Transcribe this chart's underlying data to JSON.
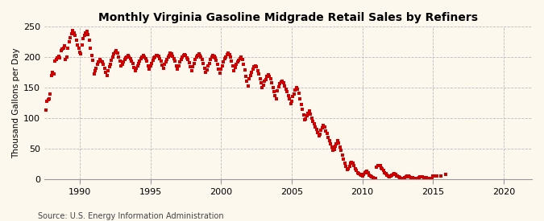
{
  "title": "Monthly Virginia Gasoline Midgrade Retail Sales by Refiners",
  "ylabel": "Thousand Gallons per Day",
  "source": "Source: U.S. Energy Information Administration",
  "background_color": "#fdf8ee",
  "dot_color": "#cc0000",
  "xlim": [
    1987.5,
    2022
  ],
  "ylim": [
    0,
    250
  ],
  "yticks": [
    0,
    50,
    100,
    150,
    200,
    250
  ],
  "xticks": [
    1990,
    1995,
    2000,
    2005,
    2010,
    2015,
    2020
  ],
  "data": {
    "dates": [
      1987.583,
      1987.667,
      1987.75,
      1987.833,
      1987.917,
      1988.0,
      1988.083,
      1988.167,
      1988.25,
      1988.333,
      1988.417,
      1988.5,
      1988.583,
      1988.667,
      1988.75,
      1988.833,
      1988.917,
      1989.0,
      1989.083,
      1989.167,
      1989.25,
      1989.333,
      1989.417,
      1989.5,
      1989.583,
      1989.667,
      1989.75,
      1989.833,
      1989.917,
      1990.0,
      1990.083,
      1990.167,
      1990.25,
      1990.333,
      1990.417,
      1990.5,
      1990.583,
      1990.667,
      1990.75,
      1990.833,
      1990.917,
      1991.0,
      1991.083,
      1991.167,
      1991.25,
      1991.333,
      1991.417,
      1991.5,
      1991.583,
      1991.667,
      1991.75,
      1991.833,
      1991.917,
      1992.0,
      1992.083,
      1992.167,
      1992.25,
      1992.333,
      1992.417,
      1992.5,
      1992.583,
      1992.667,
      1992.75,
      1992.833,
      1992.917,
      1993.0,
      1993.083,
      1993.167,
      1993.25,
      1993.333,
      1993.417,
      1993.5,
      1993.583,
      1993.667,
      1993.75,
      1993.833,
      1993.917,
      1994.0,
      1994.083,
      1994.167,
      1994.25,
      1994.333,
      1994.417,
      1994.5,
      1994.583,
      1994.667,
      1994.75,
      1994.833,
      1994.917,
      1995.0,
      1995.083,
      1995.167,
      1995.25,
      1995.333,
      1995.417,
      1995.5,
      1995.583,
      1995.667,
      1995.75,
      1995.833,
      1995.917,
      1996.0,
      1996.083,
      1996.167,
      1996.25,
      1996.333,
      1996.417,
      1996.5,
      1996.583,
      1996.667,
      1996.75,
      1996.833,
      1996.917,
      1997.0,
      1997.083,
      1997.167,
      1997.25,
      1997.333,
      1997.417,
      1997.5,
      1997.583,
      1997.667,
      1997.75,
      1997.833,
      1997.917,
      1998.0,
      1998.083,
      1998.167,
      1998.25,
      1998.333,
      1998.417,
      1998.5,
      1998.583,
      1998.667,
      1998.75,
      1998.833,
      1998.917,
      1999.0,
      1999.083,
      1999.167,
      1999.25,
      1999.333,
      1999.417,
      1999.5,
      1999.583,
      1999.667,
      1999.75,
      1999.833,
      1999.917,
      2000.0,
      2000.083,
      2000.167,
      2000.25,
      2000.333,
      2000.417,
      2000.5,
      2000.583,
      2000.667,
      2000.75,
      2000.833,
      2000.917,
      2001.0,
      2001.083,
      2001.167,
      2001.25,
      2001.333,
      2001.417,
      2001.5,
      2001.583,
      2001.667,
      2001.75,
      2001.833,
      2001.917,
      2002.0,
      2002.083,
      2002.167,
      2002.25,
      2002.333,
      2002.417,
      2002.5,
      2002.583,
      2002.667,
      2002.75,
      2002.833,
      2002.917,
      2003.0,
      2003.083,
      2003.167,
      2003.25,
      2003.333,
      2003.417,
      2003.5,
      2003.583,
      2003.667,
      2003.75,
      2003.833,
      2003.917,
      2004.0,
      2004.083,
      2004.167,
      2004.25,
      2004.333,
      2004.417,
      2004.5,
      2004.583,
      2004.667,
      2004.75,
      2004.833,
      2004.917,
      2005.0,
      2005.083,
      2005.167,
      2005.25,
      2005.333,
      2005.417,
      2005.5,
      2005.583,
      2005.667,
      2005.75,
      2005.833,
      2005.917,
      2006.0,
      2006.083,
      2006.167,
      2006.25,
      2006.333,
      2006.417,
      2006.5,
      2006.583,
      2006.667,
      2006.75,
      2006.833,
      2006.917,
      2007.0,
      2007.083,
      2007.167,
      2007.25,
      2007.333,
      2007.417,
      2007.5,
      2007.583,
      2007.667,
      2007.75,
      2007.833,
      2007.917,
      2008.0,
      2008.083,
      2008.167,
      2008.25,
      2008.333,
      2008.417,
      2008.5,
      2008.583,
      2008.667,
      2008.75,
      2008.833,
      2008.917,
      2009.0,
      2009.083,
      2009.167,
      2009.25,
      2009.333,
      2009.417,
      2009.5,
      2009.583,
      2009.667,
      2009.75,
      2009.833,
      2009.917,
      2010.0,
      2010.083,
      2010.167,
      2010.25,
      2010.333,
      2010.417,
      2010.5,
      2010.583,
      2010.667,
      2010.75,
      2010.833,
      2010.917,
      2011.0,
      2011.083,
      2011.167,
      2011.25,
      2011.333,
      2011.417,
      2011.5,
      2011.583,
      2011.667,
      2011.75,
      2011.833,
      2011.917,
      2012.0,
      2012.083,
      2012.167,
      2012.25,
      2012.333,
      2012.417,
      2012.5,
      2012.583,
      2012.667,
      2012.75,
      2012.833,
      2012.917,
      2013.0,
      2013.083,
      2013.167,
      2013.25,
      2013.333,
      2013.417,
      2013.5,
      2013.583,
      2013.667,
      2013.75,
      2013.833,
      2013.917,
      2014.0,
      2014.083,
      2014.167,
      2014.25,
      2014.333,
      2014.417,
      2014.5,
      2014.583,
      2014.667,
      2014.75,
      2014.833,
      2014.917,
      2015.0,
      2015.083,
      2015.25,
      2015.583,
      2015.917
    ],
    "values": [
      113,
      127,
      130,
      132,
      140,
      170,
      175,
      172,
      193,
      196,
      198,
      201,
      198,
      210,
      213,
      215,
      218,
      196,
      200,
      215,
      225,
      232,
      238,
      243,
      240,
      235,
      228,
      220,
      215,
      208,
      205,
      220,
      230,
      235,
      240,
      242,
      237,
      228,
      215,
      202,
      195,
      173,
      178,
      182,
      188,
      192,
      196,
      194,
      192,
      188,
      182,
      175,
      170,
      178,
      184,
      188,
      195,
      200,
      205,
      208,
      210,
      206,
      200,
      194,
      186,
      188,
      192,
      196,
      198,
      200,
      202,
      200,
      197,
      194,
      190,
      183,
      178,
      182,
      186,
      190,
      194,
      197,
      200,
      202,
      200,
      197,
      193,
      186,
      180,
      186,
      190,
      195,
      198,
      200,
      202,
      203,
      201,
      197,
      193,
      187,
      182,
      188,
      192,
      196,
      200,
      203,
      206,
      205,
      201,
      197,
      193,
      186,
      180,
      186,
      192,
      196,
      200,
      202,
      204,
      202,
      199,
      196,
      191,
      184,
      178,
      184,
      190,
      196,
      200,
      203,
      205,
      203,
      200,
      196,
      190,
      182,
      175,
      179,
      185,
      190,
      196,
      200,
      202,
      201,
      198,
      195,
      188,
      180,
      174,
      180,
      186,
      192,
      197,
      200,
      204,
      207,
      204,
      200,
      193,
      186,
      178,
      183,
      188,
      192,
      195,
      197,
      200,
      196,
      188,
      179,
      169,
      160,
      153,
      164,
      170,
      175,
      180,
      184,
      186,
      184,
      178,
      173,
      164,
      158,
      150,
      154,
      160,
      163,
      168,
      171,
      169,
      165,
      158,
      150,
      143,
      137,
      132,
      145,
      151,
      156,
      159,
      161,
      158,
      153,
      148,
      143,
      137,
      131,
      124,
      128,
      135,
      140,
      146,
      150,
      147,
      141,
      131,
      123,
      115,
      105,
      98,
      99,
      104,
      108,
      112,
      107,
      100,
      95,
      91,
      86,
      82,
      77,
      71,
      74,
      80,
      84,
      88,
      85,
      79,
      75,
      69,
      63,
      58,
      53,
      48,
      49,
      54,
      58,
      63,
      59,
      53,
      47,
      39,
      33,
      27,
      21,
      16,
      17,
      21,
      26,
      28,
      26,
      22,
      17,
      14,
      11,
      9,
      8,
      7,
      6,
      8,
      10,
      12,
      13,
      10,
      7,
      5,
      4,
      3,
      2,
      2,
      20,
      22,
      23,
      22,
      19,
      17,
      14,
      11,
      9,
      7,
      5,
      4,
      5,
      7,
      8,
      9,
      8,
      6,
      5,
      4,
      3,
      2,
      2,
      2,
      3,
      4,
      5,
      5,
      4,
      3,
      3,
      3,
      2,
      2,
      2,
      2,
      3,
      4,
      4,
      4,
      3,
      3,
      3,
      2,
      2,
      2,
      2,
      2,
      5,
      6,
      6,
      5,
      8
    ]
  }
}
